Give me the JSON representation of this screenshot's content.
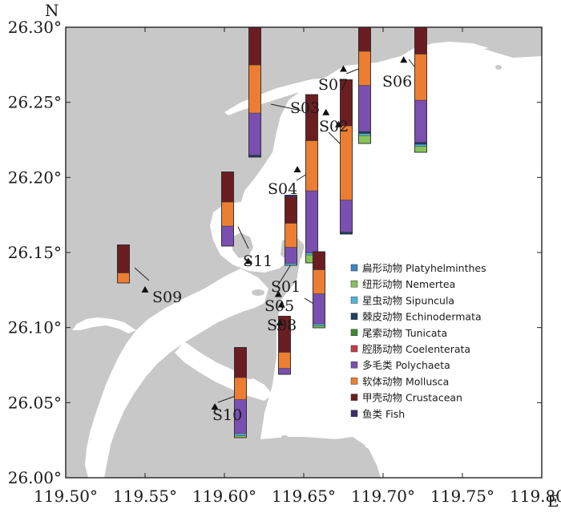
{
  "north_label": "N",
  "east_label": "E",
  "axis": {
    "lon_ticks": [
      "119.50°",
      "119.55°",
      "119.60°",
      "119.65°",
      "119.70°",
      "119.75°",
      "119.80°"
    ],
    "lat_ticks": [
      "26.00°",
      "26.05°",
      "26.10°",
      "26.15°",
      "26.20°",
      "26.25°",
      "26.30°"
    ],
    "lon_range": [
      119.5,
      119.8
    ],
    "lat_range": [
      26.0,
      26.3
    ]
  },
  "colors": {
    "land": "#c8c8c8",
    "water": "#ffffff",
    "frame": "#222222"
  },
  "legend": [
    {
      "label": "扁形动物 Platyhelminthes",
      "color": "#3b86c6"
    },
    {
      "label": "纽形动物 Nemertea",
      "color": "#86c35a"
    },
    {
      "label": "星虫动物 Sipuncula",
      "color": "#4fb5d8"
    },
    {
      "label": "棘皮动物 Echinodermata",
      "color": "#1f3f63"
    },
    {
      "label": "尾索动物 Tunicata",
      "color": "#3d8a2f"
    },
    {
      "label": "腔肠动物 Coelenterata",
      "color": "#c43c4a"
    },
    {
      "label": "多毛类 Polychaeta",
      "color": "#7a4fb0"
    },
    {
      "label": "软体动物 Mollusca",
      "color": "#ec7e33"
    },
    {
      "label": "甲壳动物 Crustacean",
      "color": "#6b1e22"
    },
    {
      "label": "鱼类 Fish",
      "color": "#3c2f6b"
    }
  ],
  "stations": [
    {
      "name": "S01",
      "lon": 119.634,
      "lat": 26.122
    },
    {
      "name": "S02",
      "lon": 119.672,
      "lat": 26.235
    },
    {
      "name": "S03",
      "lon": 119.664,
      "lat": 26.243
    },
    {
      "name": "S04",
      "lon": 119.646,
      "lat": 26.205
    },
    {
      "name": "S05",
      "lon": 119.636,
      "lat": 26.115
    },
    {
      "name": "S06",
      "lon": 119.713,
      "lat": 26.278
    },
    {
      "name": "S07",
      "lon": 119.675,
      "lat": 26.272
    },
    {
      "name": "S08",
      "lon": 119.635,
      "lat": 26.103
    },
    {
      "name": "S09",
      "lon": 119.55,
      "lat": 26.125
    },
    {
      "name": "S10",
      "lon": 119.594,
      "lat": 26.047
    },
    {
      "name": "S11",
      "lon": 119.615,
      "lat": 26.144
    }
  ],
  "chart_data": {
    "type": "bar",
    "stacked": true,
    "series_order": [
      "Platyhelminthes",
      "Nemertea",
      "Sipuncula",
      "Echinodermata",
      "Tunicata",
      "Coelenterata",
      "Polychaeta",
      "Mollusca",
      "Crustacean",
      "Fish"
    ],
    "stations": [
      {
        "station": "S01",
        "values": {
          "Sipuncula": 0.01,
          "Polychaeta": 0.08,
          "Mollusca": 0.12,
          "Crustacean": 0.13,
          "Fish": 0.01
        }
      },
      {
        "station": "S02",
        "values": {
          "Echinodermata": 0.01,
          "Polychaeta": 0.16,
          "Mollusca": 0.37,
          "Crustacean": 0.23
        }
      },
      {
        "station": "S03",
        "values": {
          "Echinodermata": 0.01,
          "Polychaeta": 0.21,
          "Mollusca": 0.24,
          "Crustacean": 0.31,
          "Fish": 0.01
        }
      },
      {
        "station": "S04",
        "values": {
          "Nemertea": 0.04,
          "Sipuncula": 0.01,
          "Polychaeta": 0.31,
          "Mollusca": 0.25,
          "Crustacean": 0.23
        }
      },
      {
        "station": "S05",
        "values": {
          "Nemertea": 0.01,
          "Sipuncula": 0.01,
          "Polychaeta": 0.15,
          "Mollusca": 0.12,
          "Crustacean": 0.09
        }
      },
      {
        "station": "S06",
        "values": {
          "Nemertea": 0.03,
          "Sipuncula": 0.01,
          "Echinodermata": 0.01,
          "Polychaeta": 0.21,
          "Mollusca": 0.23,
          "Crustacean": 0.26,
          "Fish": 0.04
        }
      },
      {
        "station": "S07",
        "values": {
          "Nemertea": 0.04,
          "Sipuncula": 0.01,
          "Echinodermata": 0.01,
          "Polychaeta": 0.23,
          "Mollusca": 0.17,
          "Crustacean": 0.21,
          "Fish": 0.03
        }
      },
      {
        "station": "S08",
        "values": {
          "Polychaeta": 0.03,
          "Mollusca": 0.08,
          "Crustacean": 0.18
        }
      },
      {
        "station": "S09",
        "values": {
          "Mollusca": 0.05,
          "Crustacean": 0.14
        }
      },
      {
        "station": "S10",
        "values": {
          "Nemertea": 0.01,
          "Sipuncula": 0.01,
          "Polychaeta": 0.17,
          "Mollusca": 0.11,
          "Crustacean": 0.15
        }
      },
      {
        "station": "S11",
        "values": {
          "Polychaeta": 0.1,
          "Mollusca": 0.12,
          "Crustacean": 0.15
        }
      }
    ]
  }
}
